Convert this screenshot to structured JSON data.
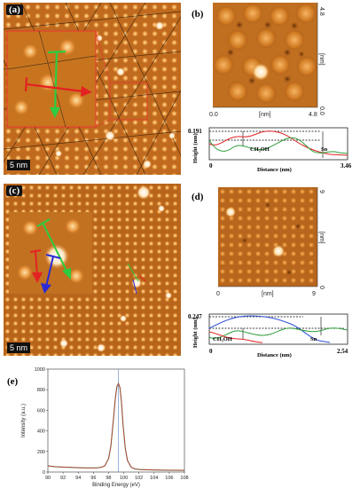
{
  "panels": {
    "a": {
      "label": "(a)",
      "scale_bar": "5 nm"
    },
    "b": {
      "label": "(b)",
      "image_axes": {
        "x_start": "0.0",
        "x_end": "4.8",
        "x_unit": "[nm]",
        "y_start": "0.0",
        "y_end": "4.8",
        "y_unit": "[nm]"
      },
      "profile": {
        "y_max_label": "0.191",
        "y_axis_label": "Height (nm)",
        "x_axis_label": "Distance (nm)",
        "x_start": "0",
        "x_end": "3.46",
        "marker_ch3oh": "CH₃OH",
        "marker_sn": "Sn"
      }
    },
    "c": {
      "label": "(c)",
      "scale_bar": "5 nm"
    },
    "d": {
      "label": "(d)",
      "image_axes": {
        "x_start": "0",
        "x_end": "9",
        "x_unit": "[nm]",
        "y_start": "0",
        "y_end": "9",
        "y_unit": "[nm]"
      },
      "profile": {
        "y_max_label": "0.247",
        "y_axis_label": "Height (nm)",
        "x_axis_label": "Distance (nm)",
        "x_start": "0",
        "x_end": "2.54",
        "marker_ch3oh": "CH₃OH",
        "marker_sn": "Sn"
      }
    },
    "e": {
      "label": "(e)"
    }
  },
  "colors": {
    "stm_bg": "#c8741e",
    "stm_bright": "#ffe9b8",
    "stm_dark": "#6b3308",
    "xps_line": "#c0392b",
    "xps_fit": "#2e8b57",
    "xps_marker": "#5b7fc7"
  },
  "chart_data": {
    "type": "line",
    "title": "",
    "xlabel": "Binding Energy (eV)",
    "ylabel": "Intensity (a.u.)",
    "xlim": [
      90,
      108
    ],
    "ylim": [
      0,
      1000
    ],
    "x_ticks": [
      "90",
      "92",
      "94",
      "96",
      "98",
      "100",
      "102",
      "104",
      "106",
      "108"
    ],
    "y_ticks": [
      "0",
      "200",
      "400",
      "600",
      "800",
      "1000"
    ],
    "series": [
      {
        "x": [
          90,
          91,
          92,
          93,
          94,
          95,
          96,
          96.5,
          97,
          97.5,
          98,
          98.3,
          98.6,
          98.9,
          99.1,
          99.3,
          99.5,
          99.7,
          99.9,
          100.2,
          100.5,
          101,
          101.5,
          102,
          103,
          104,
          105,
          106,
          107,
          108
        ],
        "values": [
          60,
          52,
          48,
          45,
          42,
          40,
          40,
          41,
          45,
          60,
          130,
          250,
          480,
          720,
          830,
          860,
          820,
          680,
          470,
          230,
          110,
          45,
          30,
          25,
          22,
          20,
          18,
          17,
          17,
          16
        ]
      }
    ],
    "marker_x": 99.3
  }
}
